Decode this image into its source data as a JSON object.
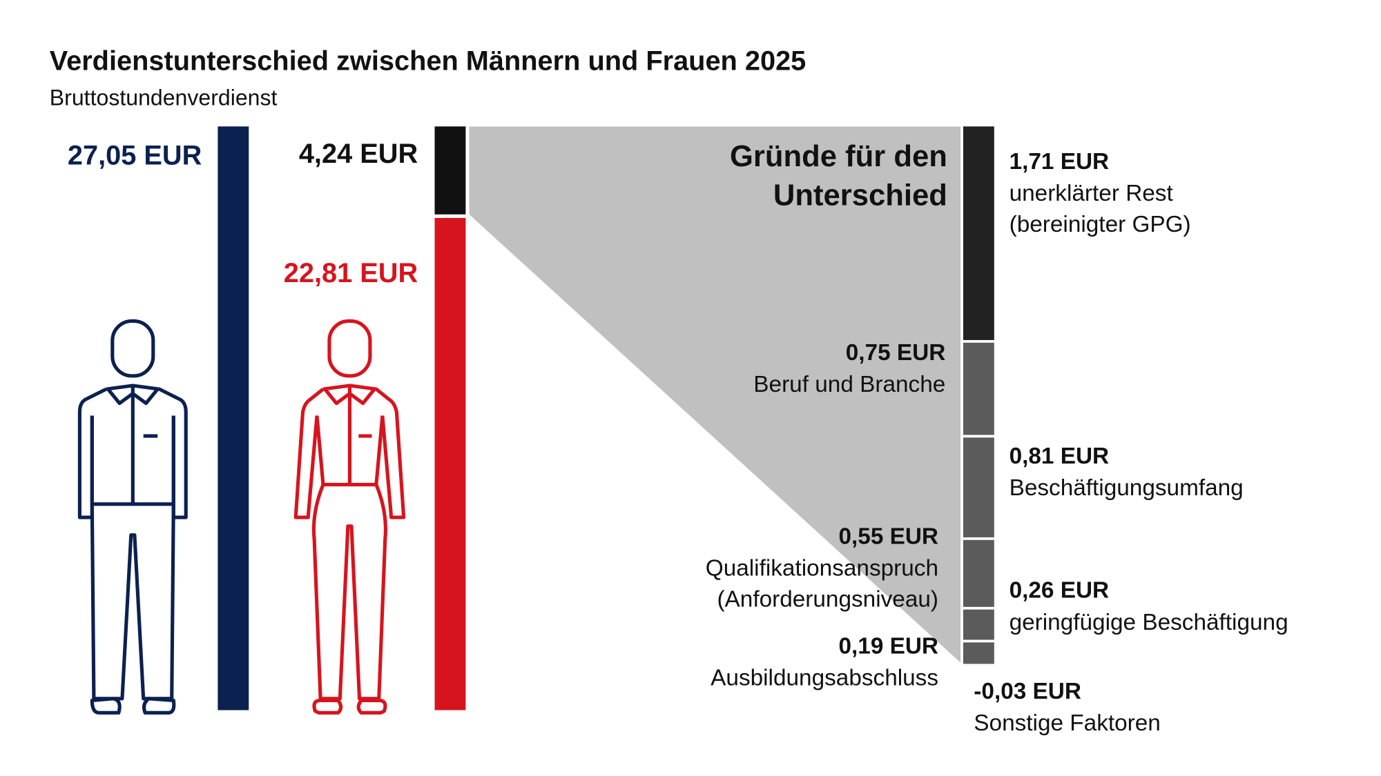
{
  "chart_data": {
    "type": "gap-breakdown",
    "title": "Verdienstunterschied zwischen Männern und Frauen 2025",
    "subtitle": "Bruttostundenverdienst",
    "values": [
      27.05,
      22.81
    ],
    "value_labels": [
      "27,05 EUR",
      "22,81 EUR"
    ],
    "colors": [
      "#0b2150",
      "#d7141e"
    ],
    "gap": {
      "value": 4.24,
      "label": "4,24 EUR",
      "color": "#111111"
    },
    "breakdown": {
      "title": "Gründe für den Unterschied",
      "values": [
        1.71,
        0.75,
        0.81,
        0.55,
        0.26,
        0.19,
        -0.03
      ],
      "value_labels": [
        "1,71 EUR",
        "0,75 EUR",
        "0,81 EUR",
        "0,55 EUR",
        "0,26 EUR",
        "0,19 EUR",
        "-0,03 EUR"
      ],
      "categories": [
        "unerklärter Rest (bereinigter GPG)",
        "Beruf und Branche",
        "Beschäftigungsumfang",
        "Qualifikationsanspruch (Anforderungsniveau)",
        "geringfügige Beschäftigung",
        "Ausbildungsabschluss",
        "Sonstige Faktoren"
      ],
      "colors": [
        "#222222",
        "#5b5b5b",
        "#5b5b5b",
        "#5b5b5b",
        "#5b5b5b",
        "#5b5b5b",
        "#5b5b5b"
      ],
      "band_color": "#c0c0c0"
    }
  }
}
